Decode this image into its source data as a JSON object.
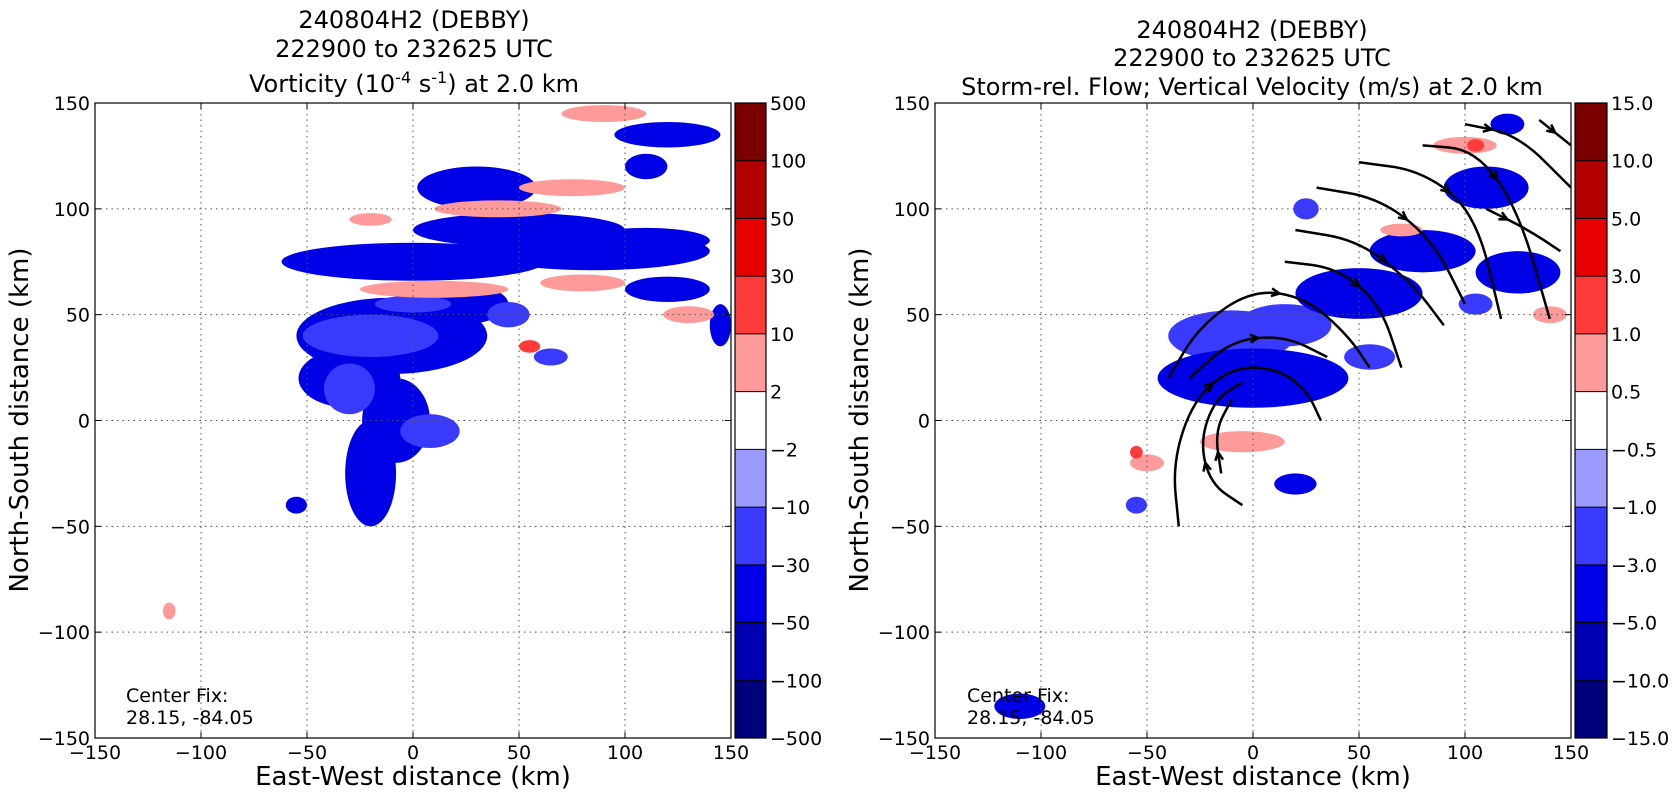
{
  "chart_data": [
    {
      "type": "heatmap",
      "title_lines": [
        "240804H2 (DEBBY)",
        "222900 to 232625 UTC"
      ],
      "title_var": {
        "pre": "Vorticity (10",
        "sup1": "-4",
        "mid": " s",
        "sup2": "-1",
        "post": ") at 2.0 km"
      },
      "xlabel": "East-West distance (km)",
      "ylabel": "North-South distance (km)",
      "xlim": [
        -150,
        150
      ],
      "ylim": [
        -150,
        150
      ],
      "xticks": [
        -150,
        -100,
        -50,
        0,
        50,
        100,
        150
      ],
      "yticks": [
        -150,
        -100,
        -50,
        0,
        50,
        100,
        150
      ],
      "grid": true,
      "annotation": [
        "Center Fix:",
        "28.15, -84.05"
      ],
      "colorbar": {
        "levels": [
          "500",
          "100",
          "50",
          "30",
          "10",
          "2",
          "−2",
          "−10",
          "−30",
          "−50",
          "−100",
          "−500"
        ],
        "colors": [
          "#7a0000",
          "#b20000",
          "#e60000",
          "#ff3a3a",
          "#ff9a9a",
          "#ffffff",
          "#9a9aff",
          "#3a3aff",
          "#0000e6",
          "#0000b2",
          "#00007a"
        ]
      },
      "blobs": [
        {
          "x": 0,
          "y": 75,
          "rx": 62,
          "ry": 9,
          "level": 2
        },
        {
          "x": 50,
          "y": 90,
          "rx": 50,
          "ry": 8,
          "level": 2
        },
        {
          "x": 85,
          "y": 80,
          "rx": 55,
          "ry": 9,
          "level": 2
        },
        {
          "x": 110,
          "y": 85,
          "rx": 30,
          "ry": 6,
          "level": 2
        },
        {
          "x": 30,
          "y": 110,
          "rx": 28,
          "ry": 10,
          "level": 2
        },
        {
          "x": 120,
          "y": 135,
          "rx": 25,
          "ry": 6,
          "level": 2
        },
        {
          "x": 110,
          "y": 120,
          "rx": 10,
          "ry": 6,
          "level": 2
        },
        {
          "x": -10,
          "y": 40,
          "rx": 45,
          "ry": 18,
          "level": 2
        },
        {
          "x": 20,
          "y": 55,
          "rx": 25,
          "ry": 10,
          "level": 2
        },
        {
          "x": -30,
          "y": 20,
          "rx": 24,
          "ry": 14,
          "level": 2
        },
        {
          "x": -20,
          "y": -25,
          "rx": 12,
          "ry": 25,
          "level": 2
        },
        {
          "x": -8,
          "y": 0,
          "rx": 16,
          "ry": 20,
          "level": 2
        },
        {
          "x": 120,
          "y": 62,
          "rx": 20,
          "ry": 6,
          "level": 2
        },
        {
          "x": 145,
          "y": 45,
          "rx": 5,
          "ry": 10,
          "level": 2
        },
        {
          "x": -55,
          "y": -40,
          "rx": 5,
          "ry": 4,
          "level": 2
        },
        {
          "x": -20,
          "y": 40,
          "rx": 32,
          "ry": 10,
          "level": 3
        },
        {
          "x": -30,
          "y": 15,
          "rx": 12,
          "ry": 12,
          "level": 3
        },
        {
          "x": 8,
          "y": -5,
          "rx": 14,
          "ry": 8,
          "level": 3
        },
        {
          "x": 45,
          "y": 50,
          "rx": 10,
          "ry": 6,
          "level": 3
        },
        {
          "x": 65,
          "y": 30,
          "rx": 8,
          "ry": 4,
          "level": 3
        },
        {
          "x": 0,
          "y": 55,
          "rx": 18,
          "ry": 4,
          "level": 3
        },
        {
          "x": 10,
          "y": 62,
          "rx": 35,
          "ry": 4,
          "level": 6
        },
        {
          "x": 40,
          "y": 100,
          "rx": 30,
          "ry": 4,
          "level": 6
        },
        {
          "x": 80,
          "y": 65,
          "rx": 20,
          "ry": 4,
          "level": 6
        },
        {
          "x": 75,
          "y": 110,
          "rx": 25,
          "ry": 4,
          "level": 6
        },
        {
          "x": 90,
          "y": 145,
          "rx": 20,
          "ry": 4,
          "level": 6
        },
        {
          "x": 130,
          "y": 50,
          "rx": 12,
          "ry": 4,
          "level": 6
        },
        {
          "x": -20,
          "y": 95,
          "rx": 10,
          "ry": 3,
          "level": 6
        },
        {
          "x": -115,
          "y": -90,
          "rx": 3,
          "ry": 4,
          "level": 6
        },
        {
          "x": 55,
          "y": 35,
          "rx": 5,
          "ry": 3,
          "level": 7
        }
      ]
    },
    {
      "type": "heatmap",
      "title_lines": [
        "240804H2 (DEBBY)",
        "222900 to 232625 UTC",
        "Storm-rel. Flow; Vertical Velocity (m/s) at 2.0 km"
      ],
      "xlabel": "East-West distance (km)",
      "ylabel": "North-South distance (km)",
      "xlim": [
        -150,
        150
      ],
      "ylim": [
        -150,
        150
      ],
      "xticks": [
        -150,
        -100,
        -50,
        0,
        50,
        100,
        150
      ],
      "yticks": [
        -150,
        -100,
        -50,
        0,
        50,
        100,
        150
      ],
      "grid": true,
      "annotation": [
        "Center Fix:",
        "28.15, -84.05"
      ],
      "colorbar": {
        "levels": [
          "15.0",
          "10.0",
          "5.0",
          "3.0",
          "1.0",
          "0.5",
          "−0.5",
          "−1.0",
          "−3.0",
          "−5.0",
          "−10.0",
          "−15.0"
        ],
        "colors": [
          "#7a0000",
          "#b20000",
          "#e60000",
          "#ff3a3a",
          "#ff9a9a",
          "#ffffff",
          "#9a9aff",
          "#3a3aff",
          "#0000e6",
          "#0000b2",
          "#00007a"
        ]
      },
      "blobs": [
        {
          "x": -10,
          "y": 40,
          "rx": 30,
          "ry": 12,
          "level": 3
        },
        {
          "x": 15,
          "y": 45,
          "rx": 22,
          "ry": 10,
          "level": 3
        },
        {
          "x": 30,
          "y": 20,
          "rx": 8,
          "ry": 10,
          "level": 3
        },
        {
          "x": 55,
          "y": 30,
          "rx": 12,
          "ry": 6,
          "level": 3
        },
        {
          "x": 25,
          "y": 100,
          "rx": 6,
          "ry": 5,
          "level": 3
        },
        {
          "x": 105,
          "y": 55,
          "rx": 8,
          "ry": 5,
          "level": 3
        },
        {
          "x": -55,
          "y": -40,
          "rx": 5,
          "ry": 4,
          "level": 3
        },
        {
          "x": 0,
          "y": 20,
          "rx": 45,
          "ry": 14,
          "level": 2
        },
        {
          "x": 50,
          "y": 60,
          "rx": 30,
          "ry": 12,
          "level": 2
        },
        {
          "x": 80,
          "y": 80,
          "rx": 25,
          "ry": 10,
          "level": 2
        },
        {
          "x": 110,
          "y": 110,
          "rx": 20,
          "ry": 10,
          "level": 2
        },
        {
          "x": 125,
          "y": 70,
          "rx": 20,
          "ry": 10,
          "level": 2
        },
        {
          "x": -110,
          "y": -135,
          "rx": 12,
          "ry": 6,
          "level": 2
        },
        {
          "x": 20,
          "y": -30,
          "rx": 10,
          "ry": 5,
          "level": 2
        },
        {
          "x": 120,
          "y": 140,
          "rx": 8,
          "ry": 5,
          "level": 2
        },
        {
          "x": -5,
          "y": -10,
          "rx": 20,
          "ry": 5,
          "level": 6
        },
        {
          "x": 100,
          "y": 130,
          "rx": 15,
          "ry": 4,
          "level": 6
        },
        {
          "x": 140,
          "y": 50,
          "rx": 8,
          "ry": 4,
          "level": 6
        },
        {
          "x": -50,
          "y": -20,
          "rx": 8,
          "ry": 4,
          "level": 6
        },
        {
          "x": 70,
          "y": 90,
          "rx": 10,
          "ry": 3,
          "level": 6
        },
        {
          "x": -55,
          "y": -15,
          "rx": 3,
          "ry": 3,
          "level": 7
        },
        {
          "x": 105,
          "y": 130,
          "rx": 4,
          "ry": 3,
          "level": 7
        }
      ],
      "streamlines": [
        [
          [
            -40,
            20
          ],
          [
            -25,
            45
          ],
          [
            0,
            62
          ],
          [
            25,
            58
          ],
          [
            45,
            40
          ],
          [
            55,
            25
          ]
        ],
        [
          [
            -30,
            20
          ],
          [
            -10,
            38
          ],
          [
            15,
            40
          ],
          [
            35,
            30
          ]
        ],
        [
          [
            -35,
            -50
          ],
          [
            -38,
            -20
          ],
          [
            -28,
            10
          ],
          [
            -10,
            25
          ],
          [
            10,
            25
          ],
          [
            25,
            15
          ],
          [
            32,
            0
          ]
        ],
        [
          [
            -5,
            -40
          ],
          [
            -20,
            -30
          ],
          [
            -25,
            -10
          ],
          [
            -18,
            10
          ],
          [
            -5,
            18
          ]
        ],
        [
          [
            -15,
            -25
          ],
          [
            -18,
            -5
          ],
          [
            -10,
            10
          ]
        ],
        [
          [
            15,
            75
          ],
          [
            40,
            72
          ],
          [
            60,
            55
          ],
          [
            70,
            25
          ]
        ],
        [
          [
            20,
            90
          ],
          [
            50,
            85
          ],
          [
            75,
            65
          ],
          [
            90,
            45
          ]
        ],
        [
          [
            30,
            110
          ],
          [
            60,
            105
          ],
          [
            85,
            85
          ],
          [
            100,
            55
          ]
        ],
        [
          [
            50,
            122
          ],
          [
            80,
            118
          ],
          [
            105,
            98
          ],
          [
            117,
            48
          ]
        ],
        [
          [
            80,
            130
          ],
          [
            105,
            128
          ],
          [
            125,
            100
          ],
          [
            140,
            48
          ]
        ],
        [
          [
            100,
            140
          ],
          [
            125,
            135
          ],
          [
            150,
            110
          ]
        ],
        [
          [
            110,
            100
          ],
          [
            130,
            90
          ],
          [
            145,
            80
          ]
        ],
        [
          [
            135,
            142
          ],
          [
            150,
            130
          ]
        ]
      ]
    }
  ]
}
